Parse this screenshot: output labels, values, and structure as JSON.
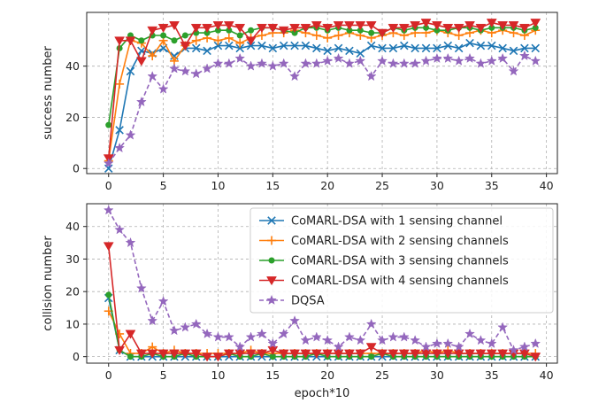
{
  "chart_data": [
    {
      "type": "line",
      "title": "",
      "xlabel": "",
      "ylabel": "success number",
      "xlim": [
        -2,
        41
      ],
      "ylim": [
        -2,
        61
      ],
      "xticks": [
        0,
        5,
        10,
        15,
        20,
        25,
        30,
        35,
        40
      ],
      "yticks": [
        0,
        20,
        40
      ],
      "grid": true,
      "x": [
        0,
        1,
        2,
        3,
        4,
        5,
        6,
        7,
        8,
        9,
        10,
        11,
        12,
        13,
        14,
        15,
        16,
        17,
        18,
        19,
        20,
        21,
        22,
        23,
        24,
        25,
        26,
        27,
        28,
        29,
        30,
        31,
        32,
        33,
        34,
        35,
        36,
        37,
        38,
        39
      ],
      "series": [
        {
          "name": "CoMARL-DSA with 1 sensing channel",
          "color": "#1f77b4",
          "marker": "x",
          "dashed": false,
          "values": [
            0,
            15,
            38,
            46,
            45,
            47,
            44,
            47,
            47,
            46,
            48,
            48,
            47,
            48,
            48,
            47,
            48,
            48,
            48,
            47,
            46,
            47,
            46,
            45,
            48,
            47,
            47,
            48,
            47,
            47,
            47,
            48,
            47,
            49,
            48,
            48,
            47,
            46,
            47,
            47
          ]
        },
        {
          "name": "CoMARL-DSA with 2 sensing channels",
          "color": "#ff7f0e",
          "marker": "+",
          "dashed": false,
          "values": [
            3,
            33,
            50,
            49,
            44,
            50,
            42,
            48,
            50,
            51,
            50,
            51,
            49,
            51,
            52,
            53,
            53,
            54,
            53,
            52,
            51,
            52,
            53,
            52,
            51,
            52,
            53,
            52,
            53,
            53,
            54,
            53,
            52,
            53,
            54,
            53,
            54,
            53,
            52,
            54
          ]
        },
        {
          "name": "CoMARL-DSA with 3 sensing channels",
          "color": "#2ca02c",
          "marker": "o",
          "dashed": false,
          "values": [
            17,
            47,
            52,
            50,
            52,
            52,
            50,
            52,
            53,
            53,
            54,
            54,
            52,
            54,
            55,
            55,
            54,
            53,
            55,
            55,
            54,
            55,
            54,
            54,
            53,
            53,
            55,
            54,
            55,
            55,
            54,
            54,
            55,
            55,
            54,
            55,
            55,
            55,
            54,
            55
          ]
        },
        {
          "name": "CoMARL-DSA with 4 sensing channels",
          "color": "#d62728",
          "marker": "v",
          "dashed": false,
          "values": [
            4,
            50,
            50,
            42,
            54,
            55,
            56,
            48,
            55,
            55,
            56,
            56,
            55,
            50,
            55,
            55,
            54,
            55,
            55,
            56,
            55,
            56,
            56,
            56,
            56,
            53,
            55,
            55,
            56,
            57,
            56,
            55,
            55,
            56,
            55,
            57,
            56,
            56,
            55,
            57
          ]
        },
        {
          "name": "DQSA",
          "color": "#9467bd",
          "marker": "*",
          "dashed": true,
          "values": [
            2,
            8,
            13,
            26,
            36,
            31,
            39,
            38,
            37,
            39,
            41,
            41,
            43,
            40,
            41,
            40,
            41,
            36,
            41,
            41,
            42,
            43,
            41,
            42,
            36,
            42,
            41,
            41,
            41,
            42,
            43,
            43,
            42,
            43,
            41,
            42,
            43,
            38,
            44,
            42
          ]
        }
      ]
    },
    {
      "type": "line",
      "title": "",
      "xlabel": "epoch*10",
      "ylabel": "collision number",
      "xlim": [
        -2,
        41
      ],
      "ylim": [
        -2,
        47
      ],
      "xticks": [
        0,
        5,
        10,
        15,
        20,
        25,
        30,
        35,
        40
      ],
      "yticks": [
        0,
        10,
        20,
        30,
        40
      ],
      "grid": true,
      "legend_position": "top-right",
      "x": [
        0,
        1,
        2,
        3,
        4,
        5,
        6,
        7,
        8,
        9,
        10,
        11,
        12,
        13,
        14,
        15,
        16,
        17,
        18,
        19,
        20,
        21,
        22,
        23,
        24,
        25,
        26,
        27,
        28,
        29,
        30,
        31,
        32,
        33,
        34,
        35,
        36,
        37,
        38,
        39
      ],
      "series": [
        {
          "name": "CoMARL-DSA with 1 sensing channel",
          "color": "#1f77b4",
          "marker": "x",
          "dashed": false,
          "values": [
            18,
            2,
            0,
            0,
            0,
            0,
            0,
            0,
            0,
            0,
            0,
            0,
            0,
            0,
            0,
            0,
            0,
            0,
            0,
            0,
            0,
            0,
            0,
            0,
            0,
            0,
            0,
            0,
            0,
            0,
            0,
            0,
            0,
            0,
            0,
            0,
            0,
            0,
            0,
            0
          ]
        },
        {
          "name": "CoMARL-DSA with 2 sensing channels",
          "color": "#ff7f0e",
          "marker": "+",
          "dashed": false,
          "values": [
            14,
            7,
            1,
            1,
            3,
            1,
            2,
            1,
            1,
            1,
            1,
            1,
            1,
            2,
            1,
            1,
            1,
            1,
            1,
            1,
            1,
            1,
            1,
            1,
            1,
            1,
            1,
            1,
            1,
            2,
            1,
            2,
            1,
            1,
            1,
            1,
            1,
            1,
            1,
            1
          ]
        },
        {
          "name": "CoMARL-DSA with 3 sensing channels",
          "color": "#2ca02c",
          "marker": "o",
          "dashed": false,
          "values": [
            19,
            2,
            0,
            0,
            1,
            0,
            0,
            1,
            0,
            0,
            0,
            1,
            0,
            0,
            1,
            0,
            0,
            0,
            0,
            1,
            0,
            0,
            0,
            0,
            0,
            1,
            0,
            0,
            0,
            0,
            0,
            0,
            0,
            0,
            0,
            0,
            0,
            0,
            0,
            0
          ]
        },
        {
          "name": "CoMARL-DSA with 4 sensing channels",
          "color": "#d62728",
          "marker": "v",
          "dashed": false,
          "values": [
            34,
            2,
            7,
            1,
            1,
            1,
            1,
            1,
            1,
            0,
            0,
            1,
            1,
            1,
            1,
            2,
            1,
            1,
            1,
            1,
            1,
            1,
            1,
            1,
            3,
            1,
            1,
            1,
            1,
            1,
            1,
            1,
            1,
            1,
            1,
            1,
            1,
            1,
            1,
            0
          ]
        },
        {
          "name": "DQSA",
          "color": "#9467bd",
          "marker": "*",
          "dashed": true,
          "values": [
            45,
            39,
            35,
            21,
            11,
            17,
            8,
            9,
            10,
            7,
            6,
            6,
            3,
            6,
            7,
            4,
            7,
            11,
            5,
            6,
            5,
            3,
            6,
            5,
            10,
            5,
            6,
            6,
            5,
            3,
            4,
            4,
            3,
            7,
            5,
            4,
            9,
            2,
            3,
            4
          ]
        }
      ]
    }
  ]
}
